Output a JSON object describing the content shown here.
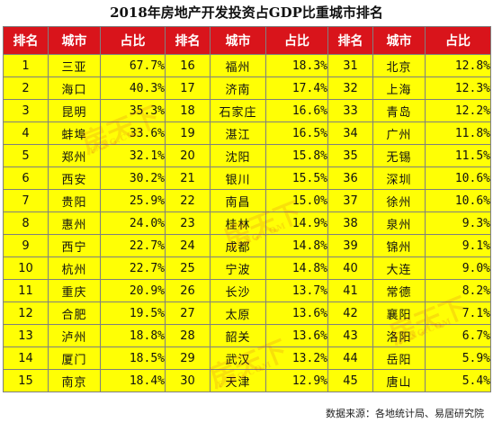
{
  "title": "2018年房地产开发投资占GDP比重城市排名",
  "headers": [
    "排名",
    "城市",
    "占比",
    "排名",
    "城市",
    "占比",
    "排名",
    "城市",
    "占比"
  ],
  "rows": [
    [
      {
        "rank": "1",
        "city": "三亚",
        "pct": "67.7%"
      },
      {
        "rank": "16",
        "city": "福州",
        "pct": "18.3%"
      },
      {
        "rank": "31",
        "city": "北京",
        "pct": "12.8%"
      }
    ],
    [
      {
        "rank": "2",
        "city": "海口",
        "pct": "40.3%"
      },
      {
        "rank": "17",
        "city": "济南",
        "pct": "17.4%"
      },
      {
        "rank": "32",
        "city": "上海",
        "pct": "12.3%"
      }
    ],
    [
      {
        "rank": "3",
        "city": "昆明",
        "pct": "35.3%"
      },
      {
        "rank": "18",
        "city": "石家庄",
        "pct": "16.6%"
      },
      {
        "rank": "33",
        "city": "青岛",
        "pct": "12.2%"
      }
    ],
    [
      {
        "rank": "4",
        "city": "蚌埠",
        "pct": "33.6%"
      },
      {
        "rank": "19",
        "city": "湛江",
        "pct": "16.5%"
      },
      {
        "rank": "34",
        "city": "广州",
        "pct": "11.8%"
      }
    ],
    [
      {
        "rank": "5",
        "city": "郑州",
        "pct": "32.1%"
      },
      {
        "rank": "20",
        "city": "沈阳",
        "pct": "15.8%"
      },
      {
        "rank": "35",
        "city": "无锡",
        "pct": "11.5%"
      }
    ],
    [
      {
        "rank": "6",
        "city": "西安",
        "pct": "30.2%"
      },
      {
        "rank": "21",
        "city": "银川",
        "pct": "15.5%"
      },
      {
        "rank": "36",
        "city": "深圳",
        "pct": "10.6%"
      }
    ],
    [
      {
        "rank": "7",
        "city": "贵阳",
        "pct": "25.9%"
      },
      {
        "rank": "22",
        "city": "南昌",
        "pct": "15.0%"
      },
      {
        "rank": "37",
        "city": "徐州",
        "pct": "10.6%"
      }
    ],
    [
      {
        "rank": "8",
        "city": "惠州",
        "pct": "24.0%"
      },
      {
        "rank": "23",
        "city": "桂林",
        "pct": "14.9%"
      },
      {
        "rank": "38",
        "city": "泉州",
        "pct": "9.3%"
      }
    ],
    [
      {
        "rank": "9",
        "city": "西宁",
        "pct": "22.7%"
      },
      {
        "rank": "24",
        "city": "成都",
        "pct": "14.8%"
      },
      {
        "rank": "39",
        "city": "锦州",
        "pct": "9.1%"
      }
    ],
    [
      {
        "rank": "10",
        "city": "杭州",
        "pct": "22.7%"
      },
      {
        "rank": "25",
        "city": "宁波",
        "pct": "14.8%"
      },
      {
        "rank": "40",
        "city": "大连",
        "pct": "9.0%"
      }
    ],
    [
      {
        "rank": "11",
        "city": "重庆",
        "pct": "20.9%"
      },
      {
        "rank": "26",
        "city": "长沙",
        "pct": "13.7%"
      },
      {
        "rank": "41",
        "city": "常德",
        "pct": "8.2%"
      }
    ],
    [
      {
        "rank": "12",
        "city": "合肥",
        "pct": "19.5%"
      },
      {
        "rank": "27",
        "city": "太原",
        "pct": "13.6%"
      },
      {
        "rank": "42",
        "city": "襄阳",
        "pct": "7.1%"
      }
    ],
    [
      {
        "rank": "13",
        "city": "泸州",
        "pct": "18.8%"
      },
      {
        "rank": "28",
        "city": "韶关",
        "pct": "13.6%"
      },
      {
        "rank": "43",
        "city": "洛阳",
        "pct": "6.7%"
      }
    ],
    [
      {
        "rank": "14",
        "city": "厦门",
        "pct": "18.5%"
      },
      {
        "rank": "29",
        "city": "武汉",
        "pct": "13.2%"
      },
      {
        "rank": "44",
        "city": "岳阳",
        "pct": "5.9%"
      }
    ],
    [
      {
        "rank": "15",
        "city": "南京",
        "pct": "18.4%"
      },
      {
        "rank": "30",
        "city": "天津",
        "pct": "12.9%"
      },
      {
        "rank": "45",
        "city": "唐山",
        "pct": "5.4%"
      }
    ]
  ],
  "watermark": {
    "brand": "房天下",
    "site": "FANG.COM"
  },
  "footer": "数据来源：各地统计局、易居研究院",
  "colors": {
    "header_bg": "#d9141b",
    "cell_bg": "#ffff05",
    "border": "#7f7f7f"
  }
}
